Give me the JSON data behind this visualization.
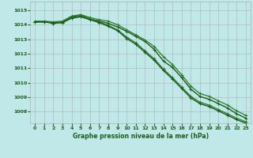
{
  "title": "Graphe pression niveau de la mer (hPa)",
  "bg_color": "#c0e8e8",
  "grid_color": "#b0b0b0",
  "line_color_1": "#1a5c1a",
  "line_color_2": "#2d7a2d",
  "line_color_3": "#2d7a2d",
  "line_color_4": "#1a5c1a",
  "xlim": [
    -0.5,
    23.5
  ],
  "ylim": [
    1007.2,
    1015.6
  ],
  "yticks": [
    1008,
    1009,
    1010,
    1011,
    1012,
    1013,
    1014,
    1015
  ],
  "xticks": [
    0,
    1,
    2,
    3,
    4,
    5,
    6,
    7,
    8,
    9,
    10,
    11,
    12,
    13,
    14,
    15,
    16,
    17,
    18,
    19,
    20,
    21,
    22,
    23
  ],
  "series1": [
    1014.2,
    1014.2,
    1014.15,
    1014.2,
    1014.55,
    1014.65,
    1014.4,
    1014.25,
    1014.1,
    1013.85,
    1013.55,
    1013.2,
    1012.85,
    1012.3,
    1011.5,
    1011.05,
    1010.35,
    1009.55,
    1009.05,
    1008.85,
    1008.55,
    1008.25,
    1007.85,
    1007.55
  ],
  "series2": [
    1014.25,
    1014.25,
    1014.2,
    1014.25,
    1014.6,
    1014.7,
    1014.5,
    1014.35,
    1014.25,
    1014.0,
    1013.65,
    1013.3,
    1012.95,
    1012.5,
    1011.8,
    1011.25,
    1010.55,
    1009.75,
    1009.25,
    1009.05,
    1008.75,
    1008.45,
    1008.05,
    1007.75
  ],
  "series3": [
    1014.2,
    1014.2,
    1014.1,
    1014.15,
    1014.5,
    1014.6,
    1014.4,
    1014.2,
    1013.95,
    1013.65,
    1013.15,
    1012.75,
    1012.2,
    1011.65,
    1010.95,
    1010.35,
    1009.7,
    1009.05,
    1008.65,
    1008.45,
    1008.15,
    1007.85,
    1007.55,
    1007.3
  ],
  "series4": [
    1014.2,
    1014.2,
    1014.1,
    1014.15,
    1014.45,
    1014.55,
    1014.35,
    1014.15,
    1013.9,
    1013.6,
    1013.05,
    1012.65,
    1012.1,
    1011.55,
    1010.85,
    1010.25,
    1009.6,
    1008.95,
    1008.55,
    1008.35,
    1008.05,
    1007.75,
    1007.45,
    1007.2
  ]
}
